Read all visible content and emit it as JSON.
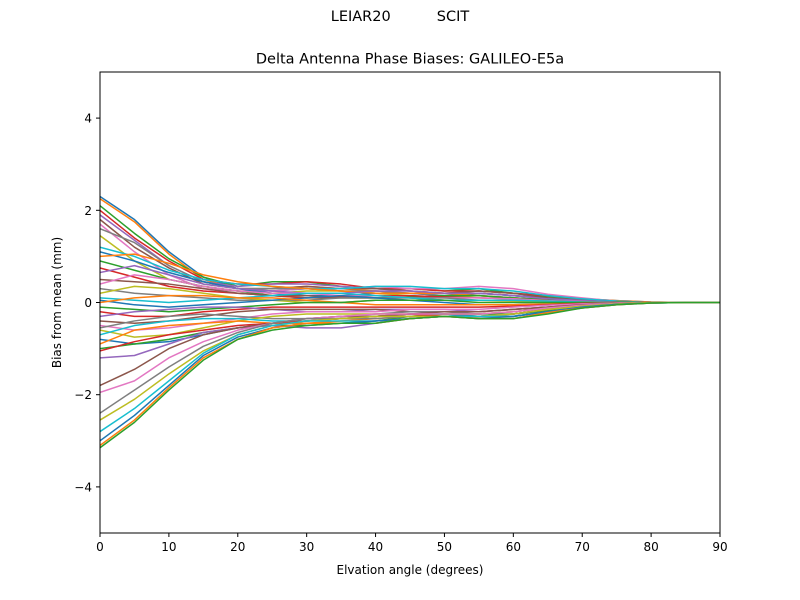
{
  "suptitle": "LEIAR20          SCIT",
  "chart_data": {
    "type": "line",
    "title": "Delta Antenna Phase Biases: GALILEO-E5a",
    "xlabel": "Elvation angle (degrees)",
    "ylabel": "Bias from mean (mm)",
    "xlim": [
      0,
      90
    ],
    "ylim": [
      -5,
      5
    ],
    "xticks": [
      0,
      10,
      20,
      30,
      40,
      50,
      60,
      70,
      80,
      90
    ],
    "yticks": [
      -4,
      -2,
      0,
      2,
      4
    ],
    "ytick_labels": [
      "−4",
      "−2",
      "0",
      "2",
      "4"
    ],
    "grid": false,
    "legend": "none",
    "x": [
      0,
      5,
      10,
      15,
      20,
      25,
      30,
      35,
      40,
      45,
      50,
      55,
      60,
      65,
      70,
      75,
      80,
      85,
      90
    ],
    "colors": [
      "#1f77b4",
      "#ff7f0e",
      "#2ca02c",
      "#d62728",
      "#9467bd",
      "#8c564b",
      "#e377c2",
      "#7f7f7f",
      "#bcbd22",
      "#17becf"
    ],
    "series": [
      {
        "values": [
          2.3,
          1.8,
          1.1,
          0.55,
          0.3,
          0.25,
          0.3,
          0.25,
          0.2,
          0.2,
          0.15,
          0.2,
          0.15,
          0.1,
          0.08,
          0.04,
          0.01,
          0.0,
          0.0
        ]
      },
      {
        "values": [
          2.25,
          1.75,
          1.05,
          0.5,
          0.3,
          0.3,
          0.35,
          0.3,
          0.25,
          0.2,
          0.2,
          0.25,
          0.2,
          0.12,
          0.08,
          0.04,
          0.01,
          0.0,
          0.0
        ]
      },
      {
        "values": [
          2.1,
          1.5,
          0.95,
          0.55,
          0.35,
          0.45,
          0.45,
          0.35,
          0.3,
          0.3,
          0.25,
          0.3,
          0.2,
          0.12,
          0.06,
          0.03,
          0.0,
          0.0,
          0.0
        ]
      },
      {
        "values": [
          2.0,
          1.4,
          0.9,
          0.5,
          0.4,
          0.4,
          0.45,
          0.4,
          0.3,
          0.3,
          0.25,
          0.25,
          0.2,
          0.15,
          0.08,
          0.03,
          0.0,
          0.0,
          0.0
        ]
      },
      {
        "values": [
          1.9,
          1.35,
          0.8,
          0.45,
          0.35,
          0.4,
          0.4,
          0.35,
          0.3,
          0.25,
          0.2,
          0.2,
          0.15,
          0.1,
          0.05,
          0.02,
          0.0,
          0.0,
          0.0
        ]
      },
      {
        "values": [
          1.8,
          1.2,
          0.75,
          0.4,
          0.3,
          0.3,
          0.35,
          0.3,
          0.3,
          0.25,
          0.2,
          0.25,
          0.2,
          0.1,
          0.05,
          0.02,
          0.0,
          0.0,
          0.0
        ]
      },
      {
        "values": [
          1.7,
          1.1,
          0.6,
          0.3,
          0.25,
          0.25,
          0.3,
          0.3,
          0.35,
          0.3,
          0.3,
          0.35,
          0.3,
          0.18,
          0.1,
          0.03,
          0.0,
          0.0,
          0.0
        ]
      },
      {
        "values": [
          1.6,
          1.3,
          0.8,
          0.45,
          0.3,
          0.3,
          0.3,
          0.25,
          0.25,
          0.2,
          0.15,
          0.15,
          0.1,
          0.06,
          0.03,
          0.01,
          0.0,
          0.0,
          0.0
        ]
      },
      {
        "values": [
          1.45,
          0.9,
          0.5,
          0.35,
          0.25,
          0.2,
          0.25,
          0.25,
          0.2,
          0.15,
          0.1,
          0.15,
          0.1,
          0.05,
          0.03,
          0.01,
          0.0,
          0.0,
          0.0
        ]
      },
      {
        "values": [
          1.2,
          1.0,
          0.7,
          0.5,
          0.4,
          0.35,
          0.3,
          0.3,
          0.35,
          0.35,
          0.3,
          0.3,
          0.25,
          0.15,
          0.08,
          0.03,
          0.0,
          0.0,
          0.0
        ]
      },
      {
        "values": [
          1.1,
          0.9,
          0.65,
          0.45,
          0.3,
          0.2,
          0.15,
          0.15,
          0.2,
          0.2,
          0.2,
          0.2,
          0.15,
          0.08,
          0.04,
          0.01,
          0.0,
          0.0,
          0.0
        ]
      },
      {
        "values": [
          1.0,
          1.05,
          0.85,
          0.6,
          0.45,
          0.35,
          0.3,
          0.25,
          0.2,
          0.2,
          0.2,
          0.15,
          0.1,
          0.05,
          0.02,
          0.0,
          0.0,
          0.0,
          0.0
        ]
      },
      {
        "values": [
          0.9,
          0.7,
          0.5,
          0.35,
          0.25,
          0.15,
          0.1,
          0.1,
          0.1,
          0.12,
          0.15,
          0.15,
          0.1,
          0.06,
          0.03,
          0.01,
          0.0,
          0.0,
          0.0
        ]
      },
      {
        "values": [
          0.75,
          0.55,
          0.35,
          0.25,
          0.2,
          0.15,
          0.1,
          0.12,
          0.15,
          0.15,
          0.12,
          0.1,
          0.08,
          0.04,
          0.02,
          0.0,
          0.0,
          0.0,
          0.0
        ]
      },
      {
        "values": [
          0.65,
          0.8,
          0.6,
          0.4,
          0.3,
          0.25,
          0.2,
          0.2,
          0.25,
          0.25,
          0.2,
          0.2,
          0.15,
          0.08,
          0.04,
          0.01,
          0.0,
          0.0,
          0.0
        ]
      },
      {
        "values": [
          0.5,
          0.45,
          0.4,
          0.3,
          0.2,
          0.15,
          0.15,
          0.1,
          0.1,
          0.1,
          0.05,
          0.05,
          0.05,
          0.03,
          0.01,
          0.0,
          0.0,
          0.0,
          0.0
        ]
      },
      {
        "values": [
          0.4,
          0.6,
          0.5,
          0.35,
          0.25,
          0.2,
          0.2,
          0.15,
          0.15,
          0.1,
          0.1,
          0.1,
          0.08,
          0.04,
          0.02,
          0.0,
          0.0,
          0.0,
          0.0
        ]
      },
      {
        "values": [
          0.3,
          0.2,
          0.15,
          0.1,
          0.05,
          0.05,
          0.05,
          0.1,
          0.1,
          0.1,
          0.1,
          0.05,
          0.05,
          0.03,
          0.01,
          0.0,
          0.0,
          0.0,
          0.0
        ]
      },
      {
        "values": [
          0.2,
          0.35,
          0.3,
          0.2,
          0.1,
          0.05,
          0.0,
          0.0,
          0.05,
          0.05,
          0.05,
          0.05,
          0.03,
          0.02,
          0.01,
          0.0,
          0.0,
          0.0,
          0.0
        ]
      },
      {
        "values": [
          0.1,
          0.05,
          0.0,
          0.05,
          0.1,
          0.15,
          0.2,
          0.2,
          0.15,
          0.1,
          0.05,
          0.05,
          0.05,
          0.03,
          0.01,
          0.0,
          0.0,
          0.0,
          0.0
        ]
      },
      {
        "values": [
          0.05,
          -0.05,
          -0.1,
          -0.05,
          0.0,
          0.05,
          0.1,
          0.15,
          0.1,
          0.05,
          0.0,
          -0.05,
          -0.05,
          -0.03,
          -0.01,
          0.0,
          0.0,
          0.0,
          0.0
        ]
      },
      {
        "values": [
          0.0,
          0.1,
          0.15,
          0.15,
          0.1,
          0.1,
          0.05,
          0.0,
          -0.05,
          -0.05,
          -0.05,
          -0.05,
          -0.05,
          -0.03,
          -0.01,
          0.0,
          0.0,
          0.0,
          0.0
        ]
      },
      {
        "values": [
          -0.1,
          -0.15,
          -0.2,
          -0.15,
          -0.1,
          -0.05,
          0.0,
          0.0,
          0.05,
          0.05,
          0.05,
          0.0,
          0.0,
          0.0,
          0.0,
          0.0,
          0.0,
          0.0,
          0.0
        ]
      },
      {
        "values": [
          -0.2,
          -0.3,
          -0.3,
          -0.2,
          -0.15,
          -0.1,
          -0.1,
          -0.1,
          -0.1,
          -0.1,
          -0.1,
          -0.1,
          -0.08,
          -0.05,
          -0.02,
          -0.01,
          0.0,
          0.0,
          0.0
        ]
      },
      {
        "values": [
          -0.3,
          -0.2,
          -0.15,
          -0.1,
          -0.1,
          -0.15,
          -0.2,
          -0.2,
          -0.15,
          -0.15,
          -0.15,
          -0.2,
          -0.15,
          -0.1,
          -0.05,
          -0.02,
          0.0,
          0.0,
          0.0
        ]
      },
      {
        "values": [
          -0.4,
          -0.45,
          -0.4,
          -0.3,
          -0.2,
          -0.15,
          -0.15,
          -0.15,
          -0.15,
          -0.2,
          -0.2,
          -0.2,
          -0.15,
          -0.1,
          -0.05,
          -0.02,
          0.0,
          0.0,
          0.0
        ]
      },
      {
        "values": [
          -0.5,
          -0.6,
          -0.55,
          -0.45,
          -0.35,
          -0.25,
          -0.2,
          -0.2,
          -0.2,
          -0.15,
          -0.15,
          -0.15,
          -0.1,
          -0.06,
          -0.03,
          -0.01,
          0.0,
          0.0,
          0.0
        ]
      },
      {
        "values": [
          -0.55,
          -0.4,
          -0.3,
          -0.25,
          -0.3,
          -0.35,
          -0.35,
          -0.3,
          -0.25,
          -0.2,
          -0.2,
          -0.25,
          -0.2,
          -0.12,
          -0.06,
          -0.02,
          0.0,
          0.0,
          0.0
        ]
      },
      {
        "values": [
          -0.6,
          -0.75,
          -0.7,
          -0.55,
          -0.4,
          -0.3,
          -0.25,
          -0.25,
          -0.25,
          -0.25,
          -0.25,
          -0.3,
          -0.25,
          -0.15,
          -0.08,
          -0.03,
          0.0,
          0.0,
          0.0
        ]
      },
      {
        "values": [
          -0.7,
          -0.5,
          -0.4,
          -0.35,
          -0.35,
          -0.4,
          -0.4,
          -0.35,
          -0.3,
          -0.25,
          -0.25,
          -0.3,
          -0.3,
          -0.2,
          -0.1,
          -0.04,
          -0.01,
          0.0,
          0.0
        ]
      },
      {
        "values": [
          -0.8,
          -0.9,
          -0.85,
          -0.7,
          -0.55,
          -0.45,
          -0.4,
          -0.35,
          -0.3,
          -0.25,
          -0.25,
          -0.3,
          -0.3,
          -0.2,
          -0.12,
          -0.05,
          -0.01,
          0.0,
          0.0
        ]
      },
      {
        "values": [
          -0.9,
          -0.6,
          -0.5,
          -0.45,
          -0.4,
          -0.45,
          -0.45,
          -0.4,
          -0.35,
          -0.3,
          -0.25,
          -0.25,
          -0.2,
          -0.12,
          -0.06,
          -0.02,
          0.0,
          0.0,
          0.0
        ]
      },
      {
        "values": [
          -1.0,
          -0.9,
          -0.8,
          -0.65,
          -0.55,
          -0.5,
          -0.5,
          -0.45,
          -0.4,
          -0.3,
          -0.25,
          -0.25,
          -0.25,
          -0.18,
          -0.1,
          -0.04,
          0.0,
          0.0,
          0.0
        ]
      },
      {
        "values": [
          -1.05,
          -0.85,
          -0.7,
          -0.6,
          -0.5,
          -0.45,
          -0.4,
          -0.35,
          -0.3,
          -0.25,
          -0.3,
          -0.3,
          -0.25,
          -0.15,
          -0.08,
          -0.03,
          0.0,
          0.0,
          0.0
        ]
      },
      {
        "values": [
          -1.2,
          -1.15,
          -0.9,
          -0.65,
          -0.55,
          -0.5,
          -0.55,
          -0.55,
          -0.45,
          -0.35,
          -0.3,
          -0.3,
          -0.25,
          -0.15,
          -0.08,
          -0.03,
          0.0,
          0.0,
          0.0
        ]
      },
      {
        "values": [
          -1.8,
          -1.45,
          -1.0,
          -0.7,
          -0.55,
          -0.45,
          -0.35,
          -0.3,
          -0.3,
          -0.25,
          -0.2,
          -0.2,
          -0.15,
          -0.1,
          -0.05,
          -0.02,
          0.0,
          0.0,
          0.0
        ]
      },
      {
        "values": [
          -1.95,
          -1.7,
          -1.2,
          -0.85,
          -0.6,
          -0.45,
          -0.35,
          -0.3,
          -0.25,
          -0.25,
          -0.25,
          -0.25,
          -0.2,
          -0.12,
          -0.06,
          -0.02,
          0.0,
          0.0,
          0.0
        ]
      },
      {
        "values": [
          -2.4,
          -1.9,
          -1.4,
          -0.95,
          -0.65,
          -0.45,
          -0.35,
          -0.35,
          -0.35,
          -0.3,
          -0.3,
          -0.3,
          -0.25,
          -0.15,
          -0.08,
          -0.03,
          0.0,
          0.0,
          0.0
        ]
      },
      {
        "values": [
          -2.55,
          -2.1,
          -1.55,
          -1.05,
          -0.7,
          -0.5,
          -0.4,
          -0.35,
          -0.3,
          -0.3,
          -0.3,
          -0.3,
          -0.25,
          -0.15,
          -0.08,
          -0.03,
          0.0,
          0.0,
          0.0
        ]
      },
      {
        "values": [
          -2.8,
          -2.3,
          -1.7,
          -1.1,
          -0.7,
          -0.5,
          -0.4,
          -0.4,
          -0.4,
          -0.35,
          -0.3,
          -0.3,
          -0.3,
          -0.2,
          -0.1,
          -0.04,
          -0.01,
          0.0,
          0.0
        ]
      },
      {
        "values": [
          -3.0,
          -2.45,
          -1.8,
          -1.15,
          -0.75,
          -0.55,
          -0.45,
          -0.45,
          -0.4,
          -0.35,
          -0.3,
          -0.35,
          -0.3,
          -0.2,
          -0.1,
          -0.04,
          -0.01,
          0.0,
          0.0
        ]
      },
      {
        "values": [
          -3.1,
          -2.55,
          -1.85,
          -1.2,
          -0.8,
          -0.55,
          -0.45,
          -0.45,
          -0.45,
          -0.35,
          -0.3,
          -0.35,
          -0.35,
          -0.22,
          -0.12,
          -0.05,
          -0.01,
          0.0,
          0.0
        ]
      },
      {
        "values": [
          -3.15,
          -2.6,
          -1.9,
          -1.25,
          -0.8,
          -0.6,
          -0.5,
          -0.45,
          -0.45,
          -0.35,
          -0.3,
          -0.35,
          -0.35,
          -0.25,
          -0.12,
          -0.05,
          -0.01,
          0.0,
          0.0
        ]
      }
    ]
  }
}
